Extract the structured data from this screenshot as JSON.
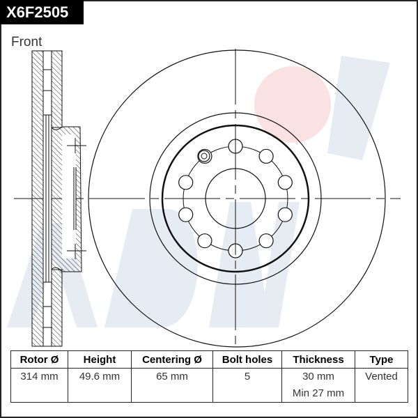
{
  "part_number": "X6F2505",
  "view_label": "Front",
  "watermark": "ADVICS",
  "colors": {
    "watermark_blue": "#dfe6ef",
    "watermark_red": "#f9dede",
    "line": "#111111"
  },
  "table": {
    "headers": [
      "Rotor Ø",
      "Height",
      "Centering Ø",
      "Bolt holes",
      "Thickness",
      "Type"
    ],
    "values": [
      "314 mm",
      "49.6 mm",
      "65 mm",
      "5",
      "30 mm",
      "Vented"
    ],
    "thickness_min": "Min 27 mm"
  }
}
